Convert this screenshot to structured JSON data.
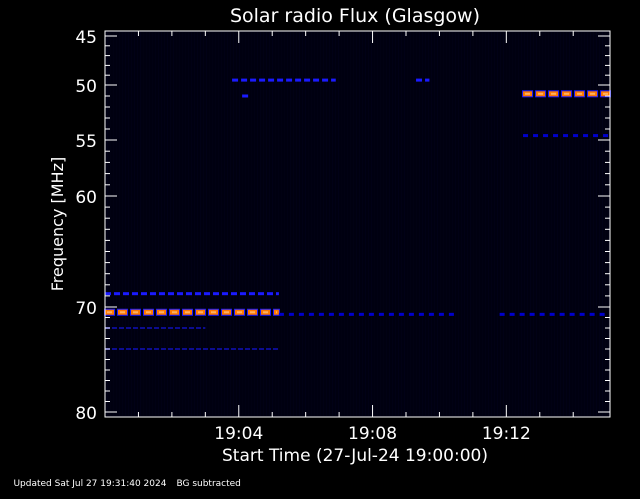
{
  "chart_data": {
    "type": "heatmap",
    "title": "Solar radio Flux (Glasgow)",
    "xlabel": "Start Time (27-Jul-24 19:00:00)",
    "ylabel": "Frequency [MHz]",
    "x_unit": "minutes after 19:00",
    "xlim": [
      0,
      15.1
    ],
    "ylim": [
      45,
      80
    ],
    "y_inverted": true,
    "x_ticks": [
      {
        "value": 4,
        "label": "19:04"
      },
      {
        "value": 8,
        "label": "19:08"
      },
      {
        "value": 12,
        "label": "19:12"
      }
    ],
    "y_ticks": [
      {
        "value": 45,
        "label": "45"
      },
      {
        "value": 50,
        "label": "50"
      },
      {
        "value": 55,
        "label": "55"
      },
      {
        "value": 60,
        "label": "60"
      },
      {
        "value": 70,
        "label": "70"
      },
      {
        "value": 80,
        "label": "80"
      }
    ],
    "background_color": "#000010",
    "colors": {
      "weak": "#1a1aff",
      "medium": "#0000cc",
      "strong": "#ff7a00",
      "peak": "#ff1a00",
      "hot": "#ffb060"
    },
    "features": [
      {
        "kind": "dashed",
        "freq": 49.5,
        "x_start": 3.8,
        "x_end": 6.9,
        "intensity": "weak"
      },
      {
        "kind": "dashed",
        "freq": 49.5,
        "x_start": 9.3,
        "x_end": 9.7,
        "intensity": "weak"
      },
      {
        "kind": "dashed",
        "freq": 51.0,
        "x_start": 4.1,
        "x_end": 4.3,
        "intensity": "weak"
      },
      {
        "kind": "dashed",
        "freq": 50.8,
        "x_start": 12.5,
        "x_end": 15.1,
        "intensity": "strong"
      },
      {
        "kind": "dashed",
        "freq": 54.6,
        "x_start": 12.5,
        "x_end": 15.1,
        "intensity": "medium"
      },
      {
        "kind": "dashed",
        "freq": 68.8,
        "x_start": 0,
        "x_end": 5.2,
        "intensity": "weak"
      },
      {
        "kind": "dashed",
        "freq": 70.5,
        "x_start": 0,
        "x_end": 5.2,
        "intensity": "strong"
      },
      {
        "kind": "dashed",
        "freq": 70.7,
        "x_start": 5.2,
        "x_end": 10.5,
        "intensity": "medium"
      },
      {
        "kind": "dashed",
        "freq": 70.7,
        "x_start": 11.8,
        "x_end": 15.1,
        "intensity": "medium"
      },
      {
        "kind": "dashed",
        "freq": 72.0,
        "x_start": 0,
        "x_end": 3.0,
        "intensity": "faint"
      },
      {
        "kind": "dashed",
        "freq": 74.0,
        "x_start": 0,
        "x_end": 5.2,
        "intensity": "faint"
      }
    ]
  },
  "footer": {
    "updated": "Updated Sat Jul 27 19:31:40 2024",
    "bg": "BG subtracted"
  }
}
